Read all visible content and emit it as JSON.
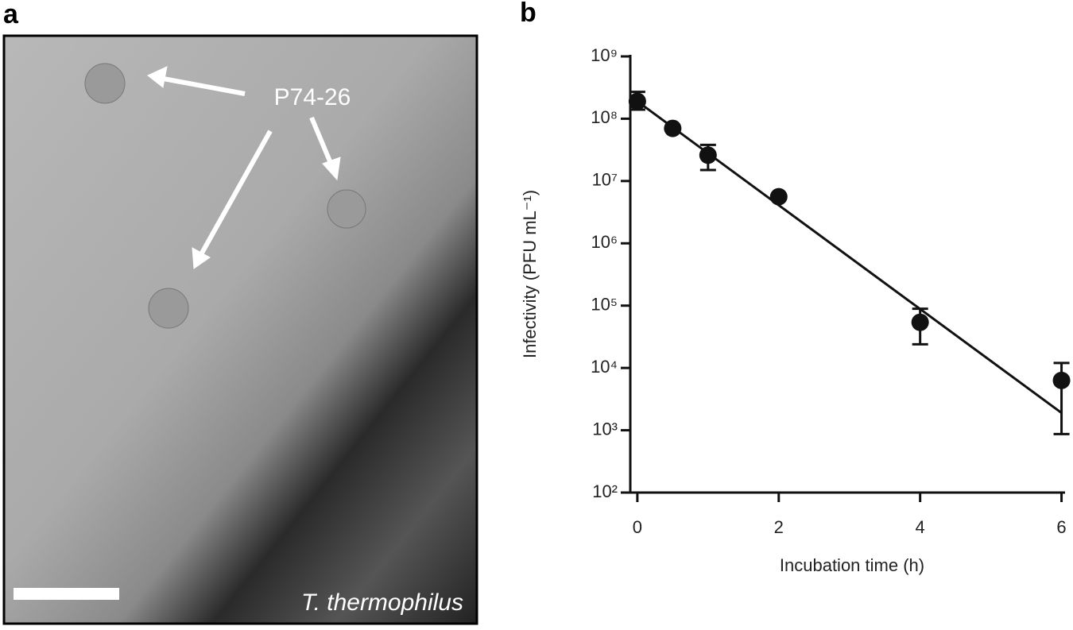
{
  "panel_a": {
    "label": "a",
    "annotation": "P74-26",
    "caption": "T. thermophilus"
  },
  "chart_data": {
    "type": "scatter",
    "panel_label": "b",
    "x_label": "Incubation time (h)",
    "y_label": "Infectivity (PFU mL⁻¹)",
    "x": [
      0,
      0.5,
      1,
      2,
      4,
      6
    ],
    "values": [
      190000000,
      70000000,
      26000000,
      5600000,
      54000,
      6300
    ],
    "error_high": [
      270000000,
      null,
      38000000,
      null,
      89000,
      12000
    ],
    "error_low": [
      140000000,
      null,
      15000000,
      null,
      24000,
      870
    ],
    "color": "#111111",
    "fit": {
      "x": [
        0,
        6
      ],
      "values": [
        190000000,
        1900
      ]
    },
    "log_y": true,
    "xlim": [
      -0.1,
      6.05
    ],
    "xticks": [
      0,
      2,
      4,
      6
    ],
    "ylim": [
      100,
      1000000000
    ],
    "yticks": [
      {
        "value": 100,
        "label": "10²"
      },
      {
        "value": 1000,
        "label": "10³"
      },
      {
        "value": 10000,
        "label": "10⁴"
      },
      {
        "value": 100000,
        "label": "10⁵"
      },
      {
        "value": 1000000,
        "label": "10⁶"
      },
      {
        "value": 10000000,
        "label": "10⁷"
      },
      {
        "value": 100000000,
        "label": "10⁸"
      },
      {
        "value": 1000000000,
        "label": "10⁹"
      }
    ]
  }
}
